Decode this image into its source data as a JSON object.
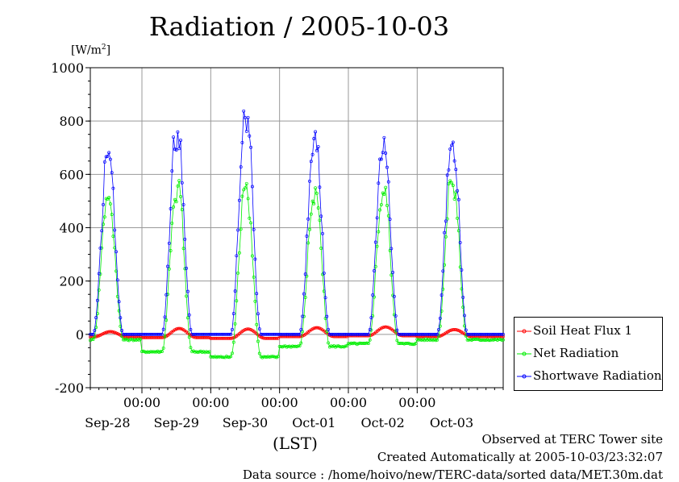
{
  "chart_data": {
    "type": "line",
    "title": "Radiation / 2005-10-03",
    "ylabel_unit": "[W/m",
    "ylabel_unit_sup": "2",
    "ylabel_unit_close": "]",
    "xlabel": "(LST)",
    "ylim": [
      -200,
      1000
    ],
    "yticks": [
      -200,
      0,
      200,
      400,
      600,
      800,
      1000
    ],
    "xlim_hours": [
      0,
      144
    ],
    "x_time_ticks": [
      "00:00",
      "00:00",
      "00:00",
      "00:00",
      "00:00"
    ],
    "x_date_labels": [
      "Sep-28",
      "Sep-29",
      "Sep-30",
      "Oct-01",
      "Oct-02",
      "Oct-03"
    ],
    "grid": true,
    "legend_position": "right",
    "series": [
      {
        "name": "Soil Heat Flux 1",
        "color": "#ff0000",
        "peak_hour": 13,
        "day_peaks": [
          10,
          22,
          20,
          25,
          28,
          18
        ],
        "night_values": [
          -10,
          -12,
          -15,
          -8,
          -5,
          -8
        ]
      },
      {
        "name": "Net Radiation",
        "color": "#00ee00",
        "day_peaks": [
          540,
          595,
          575,
          555,
          560,
          600
        ],
        "night_values": [
          -20,
          -65,
          -85,
          -45,
          -35,
          -20
        ]
      },
      {
        "name": "Shortwave Radiation",
        "color": "#0000ff",
        "day_peaks": [
          690,
          795,
          865,
          765,
          750,
          760
        ],
        "night_values": [
          0,
          0,
          0,
          0,
          0,
          0
        ]
      }
    ]
  },
  "footer": {
    "line1": "Observed at TERC Tower site",
    "line2": "Created Automatically at 2005-10-03/23:32:07",
    "line3": "Data source : /home/hoivo/new/TERC-data/sorted  data/MET.30m.dat"
  }
}
